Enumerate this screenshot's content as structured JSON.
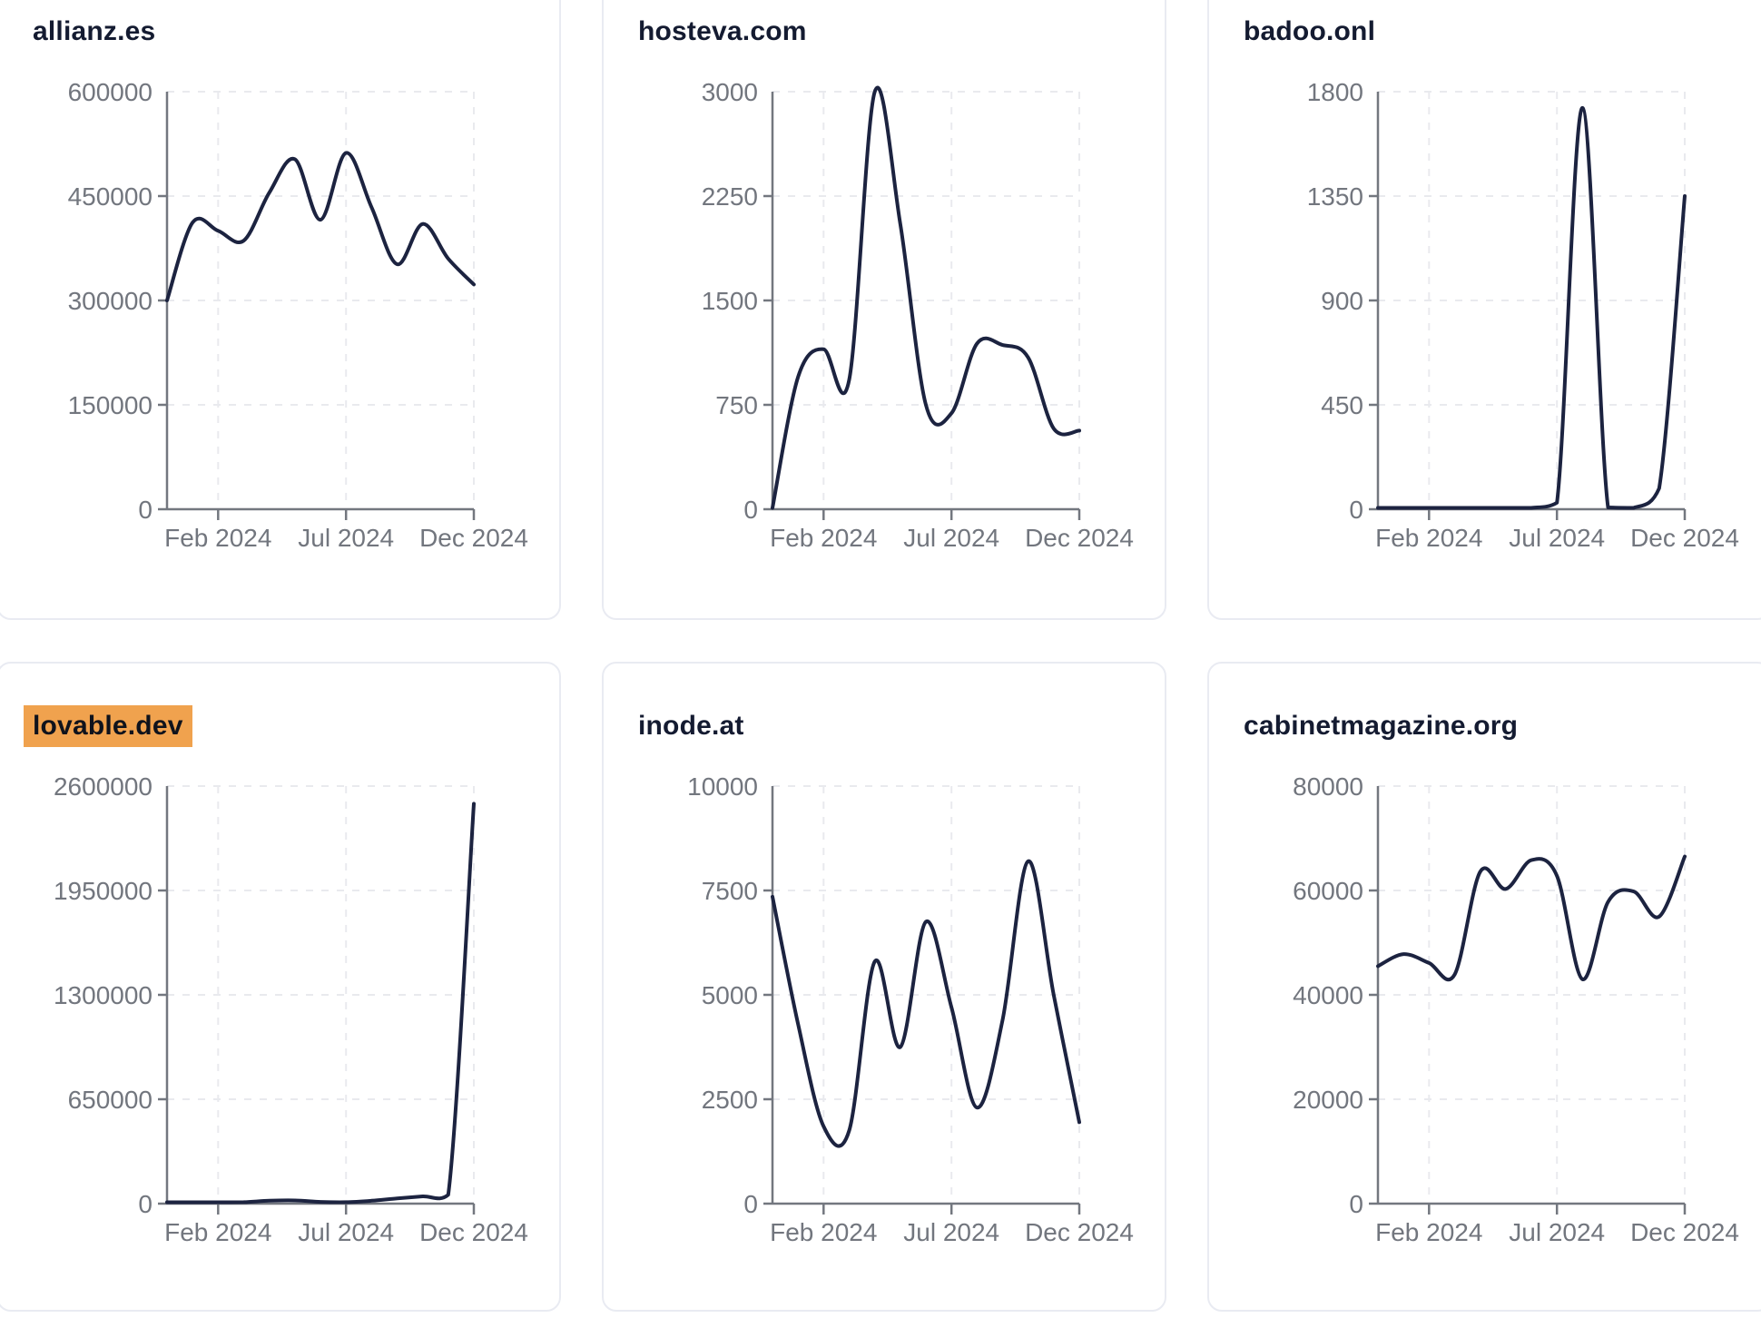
{
  "style": {
    "line_color": "#1c2340",
    "axis_color": "#73777f",
    "tick_label_color": "#72767e",
    "grid_color": "#e9eaee",
    "card_border_color": "#e9ebf2",
    "card_bg": "#ffffff",
    "page_bg": "#ffffff",
    "title_color": "#141b31",
    "highlight_bg": "#f0a24e",
    "highlight_text": "#10131c"
  },
  "chart_data": [
    {
      "type": "line",
      "title": "allianz.es",
      "highlighted": false,
      "x": [
        "Dec 2023",
        "Jan 2024",
        "Feb 2024",
        "Mar 2024",
        "Apr 2024",
        "May 2024",
        "Jun 2024",
        "Jul 2024",
        "Aug 2024",
        "Sep 2024",
        "Oct 2024",
        "Nov 2024",
        "Dec 2024"
      ],
      "values": [
        300000,
        412000,
        400000,
        386000,
        455000,
        503000,
        416000,
        512000,
        434000,
        352000,
        410000,
        360000,
        323000
      ],
      "y_ticks": [
        0,
        150000,
        300000,
        450000,
        600000
      ],
      "ylim": [
        0,
        600000
      ],
      "x_tick_labels": [
        "Feb 2024",
        "Jul 2024",
        "Dec 2024"
      ],
      "x_tick_indices": [
        2,
        7,
        12
      ],
      "grid": true,
      "legend": "none"
    },
    {
      "type": "line",
      "title": "hosteva.com",
      "highlighted": false,
      "x": [
        "Dec 2023",
        "Jan 2024",
        "Feb 2024",
        "Mar 2024",
        "Apr 2024",
        "May 2024",
        "Jun 2024",
        "Jul 2024",
        "Aug 2024",
        "Sep 2024",
        "Oct 2024",
        "Nov 2024",
        "Dec 2024"
      ],
      "values": [
        0,
        950,
        1150,
        930,
        3000,
        2050,
        750,
        690,
        1190,
        1180,
        1090,
        580,
        565
      ],
      "y_ticks": [
        0,
        750,
        1500,
        2250,
        3000
      ],
      "ylim": [
        0,
        3000
      ],
      "x_tick_labels": [
        "Feb 2024",
        "Jul 2024",
        "Dec 2024"
      ],
      "x_tick_indices": [
        2,
        7,
        12
      ],
      "grid": true,
      "legend": "none"
    },
    {
      "type": "line",
      "title": "badoo.onl",
      "highlighted": false,
      "x": [
        "Dec 2023",
        "Jan 2024",
        "Feb 2024",
        "Mar 2024",
        "Apr 2024",
        "May 2024",
        "Jun 2024",
        "Jul 2024",
        "Aug 2024",
        "Sep 2024",
        "Oct 2024",
        "Nov 2024",
        "Dec 2024"
      ],
      "values": [
        2,
        2,
        2,
        2,
        2,
        3,
        6,
        28,
        1730,
        8,
        3,
        90,
        1350
      ],
      "y_ticks": [
        0,
        450,
        900,
        1350,
        1800
      ],
      "ylim": [
        0,
        1800
      ],
      "x_tick_labels": [
        "Feb 2024",
        "Jul 2024",
        "Dec 2024"
      ],
      "x_tick_indices": [
        2,
        7,
        12
      ],
      "grid": true,
      "legend": "none"
    },
    {
      "type": "line",
      "title": "lovable.dev",
      "highlighted": true,
      "x": [
        "Dec 2023",
        "Jan 2024",
        "Feb 2024",
        "Mar 2024",
        "Apr 2024",
        "May 2024",
        "Jun 2024",
        "Jul 2024",
        "Aug 2024",
        "Sep 2024",
        "Oct 2024",
        "Nov 2024",
        "Dec 2024"
      ],
      "values": [
        2000,
        3000,
        5000,
        9000,
        18000,
        20000,
        11000,
        9000,
        18000,
        33000,
        45000,
        55000,
        2490000
      ],
      "y_ticks": [
        0,
        650000,
        1300000,
        1950000,
        2600000
      ],
      "ylim": [
        0,
        2600000
      ],
      "x_tick_labels": [
        "Feb 2024",
        "Jul 2024",
        "Dec 2024"
      ],
      "x_tick_indices": [
        2,
        7,
        12
      ],
      "grid": true,
      "legend": "none"
    },
    {
      "type": "line",
      "title": "inode.at",
      "highlighted": false,
      "x": [
        "Dec 2023",
        "Jan 2024",
        "Feb 2024",
        "Mar 2024",
        "Apr 2024",
        "May 2024",
        "Jun 2024",
        "Jul 2024",
        "Aug 2024",
        "Sep 2024",
        "Oct 2024",
        "Nov 2024",
        "Dec 2024"
      ],
      "values": [
        7350,
        4300,
        1850,
        1750,
        5800,
        3750,
        6750,
        4700,
        2300,
        4400,
        8200,
        5000,
        1950
      ],
      "y_ticks": [
        0,
        2500,
        5000,
        7500,
        10000
      ],
      "ylim": [
        0,
        10000
      ],
      "x_tick_labels": [
        "Feb 2024",
        "Jul 2024",
        "Dec 2024"
      ],
      "x_tick_indices": [
        2,
        7,
        12
      ],
      "grid": true,
      "legend": "none"
    },
    {
      "type": "line",
      "title": "cabinetmagazine.org",
      "highlighted": false,
      "x": [
        "Dec 2023",
        "Jan 2024",
        "Feb 2024",
        "Mar 2024",
        "Apr 2024",
        "May 2024",
        "Jun 2024",
        "Jul 2024",
        "Aug 2024",
        "Sep 2024",
        "Oct 2024",
        "Nov 2024",
        "Dec 2024"
      ],
      "values": [
        45500,
        47800,
        46100,
        43900,
        63600,
        60300,
        65800,
        62800,
        43000,
        57800,
        59800,
        55000,
        66500
      ],
      "y_ticks": [
        0,
        20000,
        40000,
        60000,
        80000
      ],
      "ylim": [
        0,
        80000
      ],
      "x_tick_labels": [
        "Feb 2024",
        "Jul 2024",
        "Dec 2024"
      ],
      "x_tick_indices": [
        2,
        7,
        12
      ],
      "grid": true,
      "legend": "none"
    }
  ]
}
